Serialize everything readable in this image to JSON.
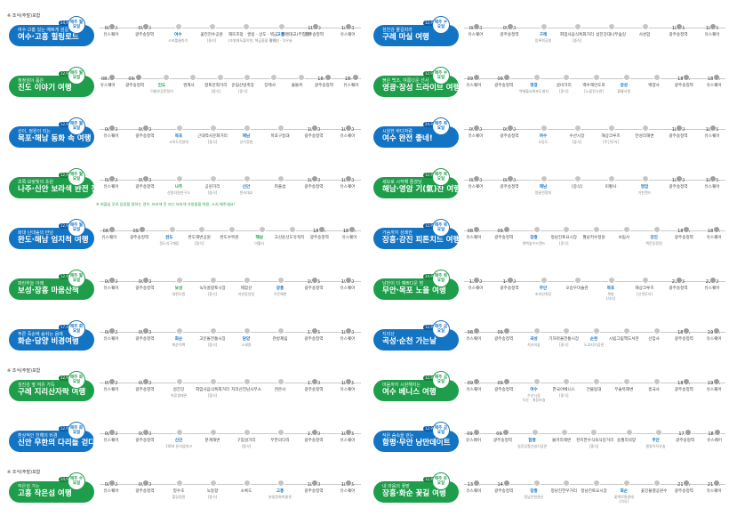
{
  "colors": {
    "blue": "#1474c4",
    "green": "#1e9e4a",
    "stop": "#c6c6c6"
  },
  "left": [
    {
      "badge": "※ 조식(주말)포함",
      "sub": "여수·고흥 있는 예쁘게 섬길",
      "title": "여수·고흥 힐링로드",
      "color": "blue",
      "price": "24,900원",
      "circ": "매주 월요일",
      "stops": [
        {
          "time": "08:20",
          "name": "유스퀘어"
        },
        {
          "time": "09:00",
          "name": "광주송정역"
        },
        {
          "time": "",
          "name": "여수",
          "cls": "hl",
          "note": "스포틀릉마기"
        },
        {
          "time": "",
          "name": "꽃전전수공원",
          "note": "[중식]"
        },
        {
          "time": "",
          "name": "해뜨조망 · 쌍용 · 상도 · 벽금 · 헬렌대교(무청택)",
          "note": "(조발래도불이천, 책금을을 정박)"
        },
        {
          "time": "",
          "name": "고흥",
          "cls": "hl",
          "note": "필명선 · 치우슬"
        },
        {
          "time": "18:10",
          "name": "광주송정역"
        },
        {
          "time": "18:40",
          "name": "유스퀘어"
        }
      ]
    },
    {
      "badge": "",
      "sub": "청정섬이 품은",
      "title": "진도 이야기 여행",
      "color": "green",
      "price": "12,900원",
      "circ": "매주 월요일",
      "stops": [
        {
          "time": "08:20",
          "name": "유스퀘어"
        },
        {
          "time": "09:00",
          "name": "광주송정역"
        },
        {
          "time": "",
          "name": "진도",
          "cls": "hlg",
          "note": "이충유공린정비"
        },
        {
          "time": "",
          "name": "쌍계사"
        },
        {
          "time": "",
          "name": "향토문화거리",
          "note": "[중식]"
        },
        {
          "time": "",
          "name": "운림산방축장",
          "note": "[중식]"
        },
        {
          "time": "",
          "name": "장제사"
        },
        {
          "time": "",
          "name": "울돌목"
        },
        {
          "time": "18:10",
          "name": "광주송정역"
        },
        {
          "time": "18:40",
          "name": "유스퀘어"
        }
      ]
    },
    {
      "badge": "",
      "sub": "산이, 정원이 되는",
      "title": "목포·해남 동화 속 여행",
      "color": "blue",
      "price": "12,900원",
      "circ": "매주 월요일",
      "stops": [
        {
          "time": "08:20",
          "name": "유스퀘어"
        },
        {
          "time": "09:00",
          "name": "광주송정역"
        },
        {
          "time": "",
          "name": "목포",
          "cls": "hl",
          "note": "고하도전망대"
        },
        {
          "time": "",
          "name": "근대역사문화거리",
          "note": "[중식]"
        },
        {
          "time": "",
          "name": "해남",
          "cls": "hl",
          "note": "산이정원"
        },
        {
          "time": "",
          "name": "목포구등대"
        },
        {
          "time": "18:10",
          "name": "광주송정역"
        },
        {
          "time": "18:40",
          "name": "유스퀘어"
        }
      ]
    },
    {
      "badge": "",
      "sub": "초록·보랏빛의 초원",
      "title": "나주·신안 보라색 완전 정복",
      "color": "green",
      "price": "12,900원",
      "circ": "매주 월요일",
      "extra": "※ 퍼플섬 무료 입장을 원하는 경우, 보라색 옷 또는 보라색 가방을을 착용, 소지 해주세요!",
      "stops": [
        {
          "time": "08:20",
          "name": "유스퀘어"
        },
        {
          "time": "09:50",
          "name": "광주송정역"
        },
        {
          "time": "",
          "name": "나주",
          "cls": "hlg",
          "note": "산림자원연구소"
        },
        {
          "time": "",
          "name": "공원거리",
          "note": "[중식]"
        },
        {
          "time": "",
          "name": "신안",
          "cls": "hl",
          "note": "천사대교"
        },
        {
          "time": "",
          "name": "퍼플섬"
        },
        {
          "time": "18:10",
          "name": "광주송정역"
        },
        {
          "time": "18:40",
          "name": "유스퀘어"
        }
      ]
    },
    {
      "badge": "",
      "sub": "화대 난대숲의 만남",
      "title": "완도·해남 엄지척 여행",
      "color": "blue",
      "price": "12,900원",
      "circ": "매주 월요일",
      "stops": [
        {
          "time": "08:20",
          "name": "유스퀘어"
        },
        {
          "time": "09:00",
          "name": "광주송정역"
        },
        {
          "time": "",
          "name": "완도",
          "cls": "hl",
          "note": "정도리구계등"
        },
        {
          "time": "",
          "name": "완도해변공원",
          "note": "[중식]"
        },
        {
          "time": "",
          "name": "완도수목원"
        },
        {
          "time": "",
          "name": "해남",
          "cls": "hlg",
          "note": "미황사"
        },
        {
          "time": "",
          "name": "고산윤선도유적지"
        },
        {
          "time": "18:10",
          "name": "광주송정역"
        },
        {
          "time": "18:40",
          "name": "유스퀘어"
        }
      ]
    },
    {
      "badge": "",
      "sub": "파란하늘 아래",
      "title": "보성·장흥 마음산책",
      "color": "green",
      "price": "12,900원",
      "circ": "매주 월요일",
      "stops": [
        {
          "time": "08:40",
          "name": "유스퀘어"
        },
        {
          "time": "09:20",
          "name": "광주송정역"
        },
        {
          "time": "",
          "name": "보성",
          "cls": "hlg",
          "note": "대한다원"
        },
        {
          "time": "",
          "name": "녹차골향토시장",
          "note": "[중식]"
        },
        {
          "time": "",
          "name": "제암산",
          "note": "자연휴양림"
        },
        {
          "time": "",
          "name": "장흥",
          "cls": "hl",
          "note": "수문해변"
        },
        {
          "time": "19:15",
          "name": "광주송정역"
        },
        {
          "time": "19:40",
          "name": "유스퀘어"
        }
      ]
    },
    {
      "badge": "",
      "sub": "푸른 죽순에 숨쉬는 음에",
      "title": "화순·담양 비경여행",
      "color": "blue",
      "price": "17,900원",
      "circ": "매주 화요일",
      "stops": [
        {
          "time": "08:20",
          "name": "유스퀘어"
        },
        {
          "time": "09:00",
          "name": "광주송정역"
        },
        {
          "time": "",
          "name": "화순",
          "cls": "hl",
          "note": "화순적벽"
        },
        {
          "time": "",
          "name": "고인돌전통시장",
          "note": "[중식]"
        },
        {
          "time": "",
          "name": "담양",
          "cls": "hl",
          "note": "소쇄원"
        },
        {
          "time": "",
          "name": "관방제림"
        },
        {
          "time": "17:55",
          "name": "광주송정역"
        },
        {
          "time": "18:20",
          "name": "유스퀘어"
        }
      ]
    },
    {
      "badge": "※ 조식(주말)포함",
      "sub": "섬진강 옆 여유 가득",
      "title": "구례 지리산자락 여행",
      "color": "green",
      "price": "12,900원",
      "circ": "매주 화요일",
      "stops": [
        {
          "time": "09:00",
          "name": "유스퀘어"
        },
        {
          "time": "09:30",
          "name": "광주송정역"
        },
        {
          "time": "",
          "name": "섬진강",
          "note": "어류생태관"
        },
        {
          "time": "",
          "name": "화엄사음식특화거리",
          "note": "[중식]"
        },
        {
          "time": "",
          "name": "지리산전남사무소"
        },
        {
          "time": "",
          "name": "천은사"
        },
        {
          "time": "17:40",
          "name": "광주송정역"
        },
        {
          "time": "18:05",
          "name": "유스퀘어"
        }
      ]
    },
    {
      "badge": "",
      "sub": "환상적인 천해의 비경",
      "title": "신안 무한의 다리를 걷다",
      "color": "blue",
      "price": "12,900원",
      "circ": "매주 화요일",
      "stops": [
        {
          "time": "08:50",
          "name": "유스퀘어"
        },
        {
          "time": "09:00",
          "name": "광주송정역"
        },
        {
          "time": "",
          "name": "신안",
          "cls": "hl",
          "note": "1004 뮤지엄파크"
        },
        {
          "time": "",
          "name": "분계해변"
        },
        {
          "time": "",
          "name": "구엄설거리",
          "note": "[중식]"
        },
        {
          "time": "",
          "name": "무한의다리"
        },
        {
          "time": "17:50",
          "name": "광주송정역"
        },
        {
          "time": "18:25",
          "name": "유스퀘어"
        }
      ]
    },
    {
      "badge": "※ 조식(주말)포함",
      "sub": "작은섬 가는",
      "title": "고흥 작은섬 여행",
      "color": "green",
      "price": "24,900원",
      "circ": "매주 수요일",
      "stops": [
        {
          "time": "08:50",
          "name": "유스퀘어"
        },
        {
          "time": "09:20",
          "name": "광주송정역"
        },
        {
          "time": "",
          "name": "정수호",
          "note": "힐링정원"
        },
        {
          "time": "",
          "name": "녹동항",
          "note": "[중식]"
        },
        {
          "time": "",
          "name": "소록도"
        },
        {
          "time": "",
          "name": "고흥",
          "cls": "hl",
          "note": "분청문화박물관"
        },
        {
          "time": "18:10",
          "name": "광주송정역"
        },
        {
          "time": "18:35",
          "name": "유스퀘어"
        }
      ]
    }
  ],
  "right": [
    {
      "badge": "",
      "sub": "섬진강 물길따라",
      "title": "구례 마실 여행",
      "color": "blue",
      "price": "12,900원",
      "circ": "매주 수요일",
      "stops": [
        {
          "time": "08:20",
          "name": "유스퀘어"
        },
        {
          "time": "09:00",
          "name": "광주송정역"
        },
        {
          "time": "",
          "name": "구례",
          "cls": "hl",
          "note": "압록역공원"
        },
        {
          "time": "",
          "name": "화엄사음식특화거리",
          "note": "[중식]"
        },
        {
          "time": "",
          "name": "섬진강대나무숲길"
        },
        {
          "time": "",
          "name": "사성암"
        },
        {
          "time": "18:05",
          "name": "광주송정역"
        },
        {
          "time": "18:25",
          "name": "유스퀘어"
        }
      ]
    },
    {
      "badge": "",
      "sub": "붉은 백조, 여름다운 선사",
      "title": "영광·장성 드라이브 여행",
      "color": "green",
      "price": "12,900원",
      "circ": "매주 수요일",
      "stops": [
        {
          "time": "09:00",
          "name": "유스퀘어"
        },
        {
          "time": "09:20",
          "name": "광주송정역"
        },
        {
          "time": "",
          "name": "영광",
          "cls": "hl",
          "note": "백제불교최초도래지"
        },
        {
          "time": "",
          "name": "굴비거리",
          "note": "[중식]"
        },
        {
          "time": "",
          "name": "백수해안도로",
          "note": "[노을전시관]"
        },
        {
          "time": "",
          "name": "장성",
          "cls": "hl",
          "note": "황룡서원"
        },
        {
          "time": "",
          "name": "백양사"
        },
        {
          "time": "18:05",
          "name": "광주송정역"
        },
        {
          "time": "18:30",
          "name": "유스퀘어"
        }
      ]
    },
    {
      "badge": "",
      "sub": "시원한 바다처럼",
      "title": "여수 완전 좋네!",
      "color": "blue",
      "price": "24,900원",
      "circ": "매주 목요일",
      "stops": [
        {
          "time": "09:10",
          "name": "유스퀘어"
        },
        {
          "time": "09:40",
          "name": "광주송정역"
        },
        {
          "time": "",
          "name": "여수",
          "cls": "hl",
          "note": "오동도"
        },
        {
          "time": "",
          "name": "수산시장",
          "note": "[중식]"
        },
        {
          "time": "",
          "name": "해상크루즈",
          "note": "[주간투어]"
        },
        {
          "time": "",
          "name": "만성리해변"
        },
        {
          "time": "18:10",
          "name": "광주송정역"
        },
        {
          "time": "18:35",
          "name": "유스퀘어"
        }
      ]
    },
    {
      "badge": "",
      "sub": "세모로 시작해 즐겼당",
      "title": "해남·영암 기(氣)찬 여행",
      "color": "green",
      "price": "12,900원",
      "circ": "매주 목요일",
      "stops": [
        {
          "time": "08:20",
          "name": "유스퀘어"
        },
        {
          "time": "08:50",
          "name": "광주송정역"
        },
        {
          "time": "",
          "name": "해남",
          "cls": "hl",
          "note": "땅끝전망대"
        },
        {
          "time": "",
          "name": "[중식]"
        },
        {
          "time": "",
          "name": "미황사"
        },
        {
          "time": "",
          "name": "영암",
          "cls": "hl",
          "note": "기찬랜드"
        },
        {
          "time": "18:20",
          "name": "광주송정역"
        },
        {
          "time": "18:45",
          "name": "유스퀘어"
        }
      ]
    },
    {
      "badge": "",
      "sub": "가슴까지 상쾌한",
      "title": "장흥·강진 피톤치드 여행",
      "color": "blue",
      "price": "12,900원",
      "circ": "매주 목요일",
      "stops": [
        {
          "time": "08:50",
          "name": "유스퀘어"
        },
        {
          "time": "09:20",
          "name": "광주송정역"
        },
        {
          "time": "",
          "name": "장흥",
          "cls": "hl",
          "note": "편백숲우드랜드"
        },
        {
          "time": "",
          "name": "정남진토요시장",
          "note": "[중식]"
        },
        {
          "time": "",
          "name": "월남저수정원"
        },
        {
          "time": "",
          "name": "보림사"
        },
        {
          "time": "",
          "name": "강진",
          "cls": "hl",
          "note": "백운동정원"
        },
        {
          "time": "18:05",
          "name": "광주송정역"
        },
        {
          "time": "18:30",
          "name": "유스퀘어"
        }
      ]
    },
    {
      "badge": "",
      "sub": "낭만이 더 예쁘다운 밤",
      "title": "무안·목포 노을 여행",
      "color": "green",
      "price": "24,900원",
      "circ": "매주 목요일",
      "stops": [
        {
          "time": "13:40",
          "name": "유스퀘어"
        },
        {
          "time": "14:10",
          "name": "광주송정역"
        },
        {
          "time": "",
          "name": "무안",
          "cls": "hl",
          "note": "조바선착장"
        },
        {
          "time": "",
          "name": "오승우미술관"
        },
        {
          "time": "",
          "name": "목포",
          "cls": "hl",
          "note": "북항",
          "sub2": "[석식]"
        },
        {
          "time": "",
          "name": "해상크루즈",
          "note": "[선셋투어]"
        },
        {
          "time": "21:35",
          "name": "광주송정역"
        },
        {
          "time": "22:00",
          "name": "유스퀘어"
        }
      ]
    },
    {
      "badge": "",
      "sub": "지리산",
      "title": "곡성·순천 가는날",
      "color": "blue",
      "price": "12,900원",
      "circ": "매주 금요일",
      "stops": [
        {
          "time": "08:30",
          "name": "유스퀘어"
        },
        {
          "time": "09:00",
          "name": "광주송정역"
        },
        {
          "time": "",
          "name": "곡성",
          "cls": "hl",
          "note": "치유의숲"
        },
        {
          "time": "",
          "name": "기차마을전통시장",
          "note": "[중식]"
        },
        {
          "time": "",
          "name": "순천",
          "cls": "hl",
          "note": "도호지기념관"
        },
        {
          "time": "",
          "name": "시립그림책도서관"
        },
        {
          "time": "",
          "name": "선암사"
        },
        {
          "time": "18:45",
          "name": "광주송정역"
        },
        {
          "time": "19:00",
          "name": "유스퀘어"
        }
      ]
    },
    {
      "badge": "",
      "sub": "마음까지 시원해지는",
      "title": "여수 베니스 여행",
      "color": "green",
      "price": "12,900원",
      "circ": "매주 금요일",
      "stops": [
        {
          "time": "09:20",
          "name": "유스퀘어"
        },
        {
          "time": "09:50",
          "name": "광주송정역"
        },
        {
          "time": "",
          "name": "여수",
          "cls": "hl",
          "note": "수산시장",
          "sub2": "두꾼 · 게음라숍"
        },
        {
          "time": "",
          "name": "한국아베니스",
          "note": "[중식]"
        },
        {
          "time": "",
          "name": "건물등대"
        },
        {
          "time": "",
          "name": "무술목해변"
        },
        {
          "time": "",
          "name": "흥국사"
        },
        {
          "time": "18:45",
          "name": "광주송정역"
        },
        {
          "time": "19:10",
          "name": "유스퀘어"
        }
      ]
    },
    {
      "badge": "",
      "sub": "작은 숨속을 걷는",
      "title": "함평·무안 낭만데이트",
      "color": "blue",
      "price": "12,900원",
      "circ": "매주 금요일",
      "stops": [
        {
          "time": "09:00",
          "name": "유스퀘어"
        },
        {
          "time": "09:30",
          "name": "광주송정역"
        },
        {
          "time": "",
          "name": "함평",
          "cls": "hl",
          "note": "일강김철선생기념관"
        },
        {
          "time": "",
          "name": "돌머리해변"
        },
        {
          "time": "",
          "name": "천지한우식육식당거리",
          "note": "[중식]"
        },
        {
          "time": "",
          "name": "용월리석양"
        },
        {
          "time": "",
          "name": "무안",
          "cls": "hl",
          "note": "물맞이치유숲"
        },
        {
          "time": "17:40",
          "name": "광주송정역"
        },
        {
          "time": "18:05",
          "name": "유스퀘어"
        }
      ]
    },
    {
      "badge": "",
      "sub": "내 마음의 꽃밭",
      "title": "장흥·화순 꽃길 여행",
      "color": "green",
      "price": "12,900원",
      "circ": "매주 토요일",
      "stops": [
        {
          "time": "13:30",
          "name": "유스퀘어"
        },
        {
          "time": "14:00",
          "name": "광주송정역"
        },
        {
          "time": "",
          "name": "장흥",
          "cls": "hl",
          "note": "정남진천관산"
        },
        {
          "time": "",
          "name": "정남진한우거리"
        },
        {
          "time": "",
          "name": "정남진토요시장"
        },
        {
          "time": "",
          "name": "화순",
          "cls": "hl",
          "note": "꽃벽로원앤레",
          "sub2": "[석식]"
        },
        {
          "time": "",
          "name": "꽃강물결공원수"
        },
        {
          "time": "21:10",
          "name": "광주송정역"
        },
        {
          "time": "21:35",
          "name": "유스퀘어"
        }
      ]
    }
  ]
}
